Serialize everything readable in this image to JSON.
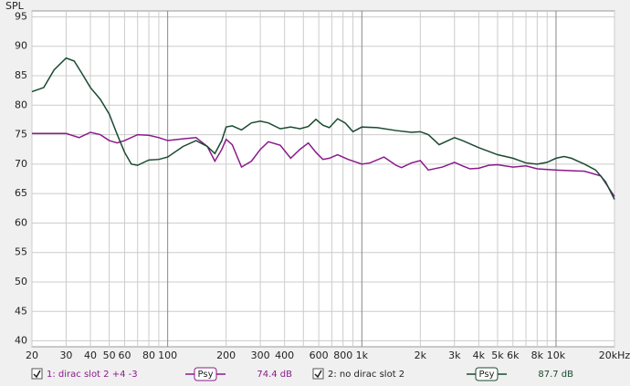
{
  "chart_data": {
    "type": "line",
    "y_label": "SPL",
    "log_x": true,
    "grid": true,
    "xlim": [
      20,
      20000
    ],
    "ylim": [
      39,
      96
    ],
    "yticks": [
      40,
      45,
      50,
      55,
      60,
      65,
      70,
      75,
      80,
      85,
      90,
      95
    ],
    "xticks": [
      20,
      30,
      40,
      50,
      60,
      {
        "value": 70,
        "label": null
      },
      80,
      {
        "value": 90,
        "label": null
      },
      100,
      200,
      300,
      400,
      {
        "value": 500,
        "label": null
      },
      600,
      {
        "value": 700,
        "label": null
      },
      800,
      {
        "value": 900,
        "label": null
      },
      {
        "value": 1000,
        "label": "1k"
      },
      {
        "value": 2000,
        "label": "2k"
      },
      {
        "value": 3000,
        "label": "3k"
      },
      {
        "value": 4000,
        "label": "4k"
      },
      {
        "value": 5000,
        "label": "5k"
      },
      {
        "value": 6000,
        "label": "6k"
      },
      {
        "value": 7000,
        "label": null
      },
      {
        "value": 8000,
        "label": "8k"
      },
      {
        "value": 9000,
        "label": null
      },
      {
        "value": 10000,
        "label": "10k"
      },
      {
        "value": 20000,
        "label": "20kHz"
      }
    ],
    "series": [
      {
        "name": "1: dirac slot 2 +4 -3",
        "color": "#8b1a8b",
        "smoothing": "Psy",
        "level": "74.4 dB",
        "x": [
          20,
          30,
          35,
          40,
          45,
          50,
          55,
          60,
          70,
          80,
          90,
          100,
          120,
          140,
          160,
          175,
          190,
          200,
          215,
          240,
          270,
          300,
          330,
          380,
          430,
          480,
          530,
          580,
          630,
          680,
          750,
          850,
          1000,
          1100,
          1300,
          1500,
          1600,
          1800,
          2000,
          2200,
          2600,
          3000,
          3300,
          3600,
          4000,
          4500,
          5000,
          6000,
          7000,
          8000,
          10000,
          14000,
          17000,
          20000
        ],
        "values": [
          75.2,
          75.2,
          74.5,
          75.4,
          75,
          74,
          73.6,
          74,
          75,
          74.9,
          74.5,
          74,
          74.3,
          74.5,
          73,
          70.5,
          72.5,
          74.2,
          73.3,
          69.5,
          70.5,
          72.5,
          73.8,
          73.2,
          71,
          72.5,
          73.6,
          72,
          70.8,
          71,
          71.6,
          70.8,
          70,
          70.2,
          71.2,
          69.8,
          69.4,
          70.2,
          70.6,
          69,
          69.5,
          70.3,
          69.7,
          69.2,
          69.3,
          69.8,
          69.9,
          69.5,
          69.7,
          69.2,
          69,
          68.8,
          68,
          64.5
        ]
      },
      {
        "name": "2: no dirac slot 2",
        "color": "#1a4a30",
        "smoothing": "Psy",
        "level": "87.7 dB",
        "x": [
          20,
          23,
          26,
          30,
          33,
          36,
          40,
          45,
          50,
          55,
          60,
          65,
          70,
          80,
          90,
          100,
          120,
          140,
          160,
          175,
          190,
          200,
          215,
          240,
          270,
          300,
          330,
          380,
          430,
          480,
          530,
          580,
          630,
          680,
          750,
          820,
          900,
          1000,
          1200,
          1500,
          1800,
          2000,
          2200,
          2500,
          3000,
          3300,
          4000,
          5000,
          6000,
          7000,
          8000,
          9000,
          10000,
          11000,
          12000,
          14000,
          16000,
          18000,
          20000
        ],
        "values": [
          82.3,
          83,
          86,
          88,
          87.5,
          85.5,
          83,
          81,
          78.5,
          75,
          72,
          70,
          69.8,
          70.7,
          70.8,
          71.2,
          73,
          74,
          73,
          71.8,
          74,
          76.3,
          76.5,
          75.8,
          77,
          77.3,
          77,
          76,
          76.3,
          76,
          76.4,
          77.6,
          76.6,
          76.2,
          77.7,
          77,
          75.5,
          76.3,
          76.2,
          75.7,
          75.4,
          75.5,
          75,
          73.3,
          74.5,
          74,
          72.8,
          71.6,
          71,
          70.2,
          70,
          70.3,
          71,
          71.3,
          71,
          70,
          69,
          67,
          64
        ]
      }
    ]
  }
}
